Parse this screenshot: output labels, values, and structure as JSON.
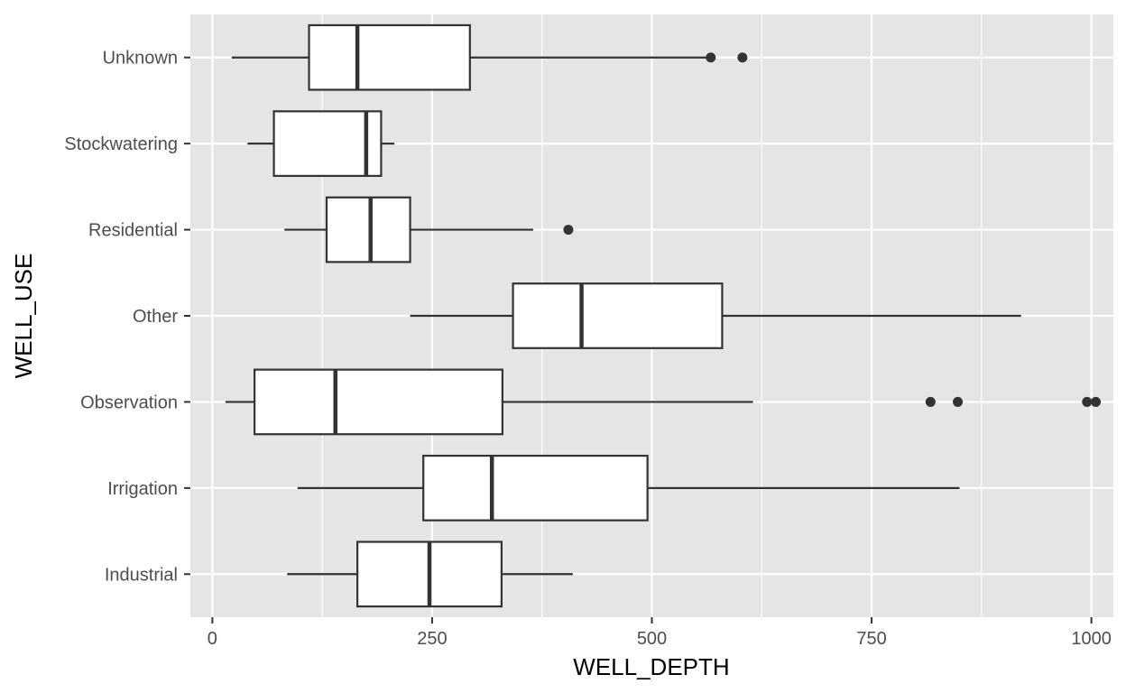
{
  "chart_data": {
    "type": "boxplot",
    "orientation": "horizontal",
    "xlabel": "WELL_DEPTH",
    "ylabel": "WELL_USE",
    "xlim": [
      -25,
      1025
    ],
    "x_ticks": [
      0,
      250,
      500,
      750,
      1000
    ],
    "x_tick_labels": [
      "0",
      "250",
      "500",
      "750",
      "1000"
    ],
    "grid": true,
    "colors": {
      "panel": "#e5e5e5",
      "grid": "#ffffff",
      "box_fill": "#ffffff",
      "box_stroke": "#333333",
      "outlier": "#333333",
      "tick_label": "#4d4d4d"
    },
    "categories": [
      "Industrial",
      "Irrigation",
      "Observation",
      "Other",
      "Residential",
      "Stockwatering",
      "Unknown"
    ],
    "boxes": [
      {
        "category": "Industrial",
        "whisker_low": 85,
        "q1": 165,
        "median": 247,
        "q3": 329,
        "whisker_high": 410,
        "outliers": []
      },
      {
        "category": "Irrigation",
        "whisker_low": 97,
        "q1": 240,
        "median": 318,
        "q3": 495,
        "whisker_high": 850,
        "outliers": []
      },
      {
        "category": "Observation",
        "whisker_low": 15,
        "q1": 48,
        "median": 140,
        "q3": 330,
        "whisker_high": 615,
        "outliers": [
          817,
          848,
          995,
          1005
        ]
      },
      {
        "category": "Other",
        "whisker_low": 225,
        "q1": 342,
        "median": 420,
        "q3": 580,
        "whisker_high": 920,
        "outliers": []
      },
      {
        "category": "Residential",
        "whisker_low": 82,
        "q1": 130,
        "median": 180,
        "q3": 225,
        "whisker_high": 365,
        "outliers": [
          405
        ]
      },
      {
        "category": "Stockwatering",
        "whisker_low": 40,
        "q1": 70,
        "median": 175,
        "q3": 192,
        "whisker_high": 207,
        "outliers": []
      },
      {
        "category": "Unknown",
        "whisker_low": 22,
        "q1": 110,
        "median": 165,
        "q3": 293,
        "whisker_high": 565,
        "outliers": [
          567,
          603
        ]
      }
    ]
  }
}
